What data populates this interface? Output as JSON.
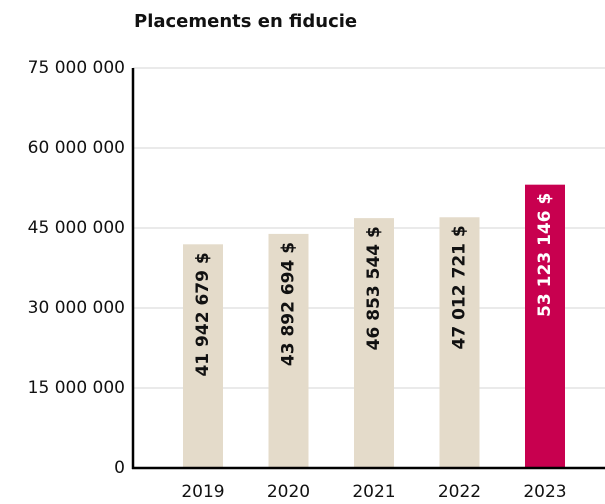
{
  "chart_data": {
    "type": "bar",
    "title": "Placements en fiducie",
    "categories": [
      "2019",
      "2020",
      "2021",
      "2022",
      "2023"
    ],
    "values": [
      41942679,
      43892694,
      46853544,
      47012721,
      53123146
    ],
    "value_labels": [
      "41 942 679 $",
      "43 892 694 $",
      "46 853 544 $",
      "47 012 721 $",
      "53 123 146 $"
    ],
    "colors": [
      "#e4dbca",
      "#e4dbca",
      "#e4dbca",
      "#e4dbca",
      "#c8004f"
    ],
    "value_label_colors": [
      "#111111",
      "#111111",
      "#111111",
      "#111111",
      "#ffffff"
    ],
    "ylim": [
      0,
      75000000
    ],
    "yticks": [
      0,
      {
        "value": 15000000,
        "label": "15 000 000"
      },
      {
        "value": 30000000,
        "label": "30 000 000"
      },
      {
        "value": 45000000,
        "label": "45 000 000"
      },
      {
        "value": 60000000,
        "label": "60 000 000"
      },
      {
        "value": 75000000,
        "label": "75 000 000"
      }
    ],
    "grid": true
  }
}
